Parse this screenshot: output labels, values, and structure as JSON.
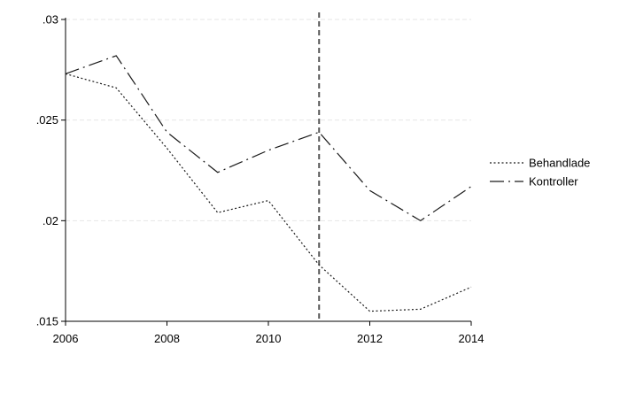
{
  "chart_data": {
    "type": "line",
    "title": "",
    "xlabel": "",
    "ylabel": "",
    "x": [
      2006,
      2007,
      2008,
      2009,
      2010,
      2011,
      2012,
      2013,
      2014
    ],
    "xlim": [
      2006,
      2014
    ],
    "ylim": [
      0.015,
      0.03
    ],
    "x_ticks": [
      2006,
      2008,
      2010,
      2012,
      2014
    ],
    "x_tick_labels": [
      "2006",
      "2008",
      "2010",
      "2012",
      "2014"
    ],
    "y_ticks": [
      0.015,
      0.02,
      0.025,
      0.03
    ],
    "y_tick_labels": [
      ".015",
      ".02",
      ".025",
      ".03"
    ],
    "grid": true,
    "reference_line_x": 2011,
    "legend_position": "right",
    "series": [
      {
        "name": "Behandlade",
        "style": "dotted",
        "values": [
          0.0273,
          0.0266,
          0.0236,
          0.0204,
          0.021,
          0.0178,
          0.0155,
          0.0156,
          0.0167
        ]
      },
      {
        "name": "Kontroller",
        "style": "longdash-dot",
        "values": [
          0.0273,
          0.0282,
          0.0244,
          0.0224,
          0.0235,
          0.0244,
          0.0215,
          0.02,
          0.0217
        ]
      }
    ]
  }
}
